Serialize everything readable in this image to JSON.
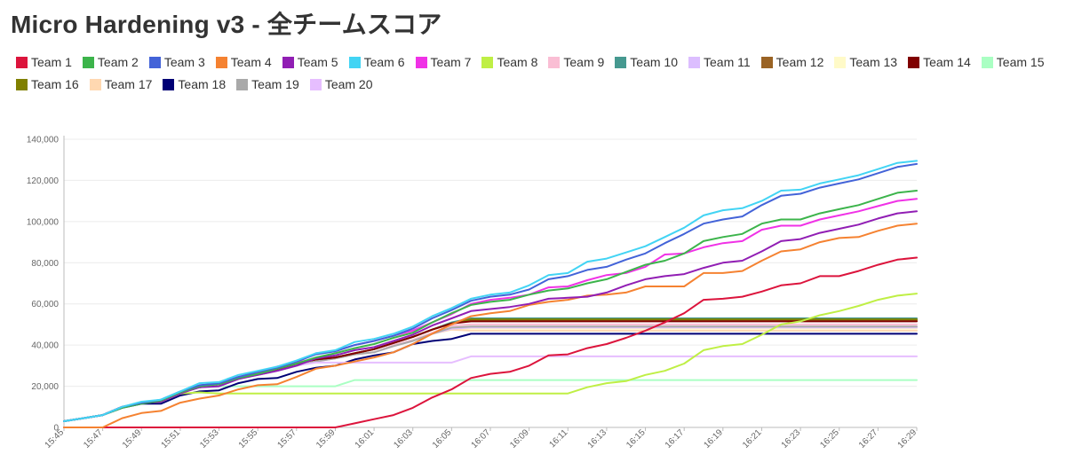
{
  "page": {
    "title": "Micro Hardening v3 - 全チームスコア"
  },
  "chart_data": {
    "type": "line",
    "title": "Micro Hardening v3 - 全チームスコア",
    "xlabel": "",
    "ylabel": "",
    "ylim": [
      0,
      140000
    ],
    "y_ticks": [
      0,
      20000,
      40000,
      60000,
      80000,
      100000,
      120000,
      140000
    ],
    "y_tick_labels": [
      "0",
      "20,000",
      "40,000",
      "60,000",
      "80,000",
      "100,000",
      "120,000",
      "140,000"
    ],
    "x_tick_labels": [
      "15:45",
      "15:47",
      "15:49",
      "15:51",
      "15:53",
      "15:55",
      "15:57",
      "15:59",
      "16:01",
      "16:03",
      "16:05",
      "16:07",
      "16:09",
      "16:11",
      "16:13",
      "16:15",
      "16:17",
      "16:19",
      "16:21",
      "16:23",
      "16:25",
      "16:27",
      "16:29"
    ],
    "grid": "horizontal",
    "legend_position": "top",
    "x": [
      "15:45",
      "15:46",
      "15:47",
      "15:48",
      "15:49",
      "15:50",
      "15:51",
      "15:52",
      "15:53",
      "15:54",
      "15:55",
      "15:56",
      "15:57",
      "15:58",
      "15:59",
      "16:00",
      "16:01",
      "16:02",
      "16:03",
      "16:04",
      "16:05",
      "16:06",
      "16:07",
      "16:08",
      "16:09",
      "16:10",
      "16:11",
      "16:12",
      "16:13",
      "16:14",
      "16:15",
      "16:16",
      "16:17",
      "16:18",
      "16:19",
      "16:20",
      "16:21",
      "16:22",
      "16:23",
      "16:24",
      "16:25",
      "16:26",
      "16:27",
      "16:28",
      "16:29"
    ],
    "series": [
      {
        "name": "Team 1",
        "color": "#dc143c",
        "values": [
          0,
          0,
          0,
          0,
          0,
          0,
          0,
          0,
          0,
          0,
          0,
          0,
          0,
          0,
          0,
          2000,
          4000,
          6000,
          9500,
          14500,
          18500,
          24000,
          26000,
          27000,
          30000,
          35000,
          35500,
          38500,
          40500,
          43500,
          47000,
          51000,
          55500,
          62000,
          62500,
          63500,
          66000,
          69000,
          70000,
          73500,
          73500,
          76000,
          79000,
          81500,
          82500
        ]
      },
      {
        "name": "Team 2",
        "color": "#3cb44b",
        "values": [
          3000,
          4500,
          6000,
          9500,
          11500,
          13000,
          17000,
          20000,
          21000,
          24000,
          26000,
          28500,
          31000,
          34000,
          36000,
          38500,
          40500,
          43500,
          46000,
          51000,
          55500,
          59500,
          61000,
          62000,
          64500,
          66500,
          67500,
          70000,
          72000,
          75500,
          79000,
          81000,
          84500,
          90500,
          92500,
          94000,
          99000,
          101000,
          101000,
          104000,
          106000,
          108000,
          111000,
          114000,
          115000
        ]
      },
      {
        "name": "Team 3",
        "color": "#4363d8",
        "values": [
          3000,
          4500,
          6000,
          10000,
          12000,
          13500,
          17500,
          20500,
          21500,
          24500,
          27000,
          29000,
          32000,
          35500,
          37000,
          40000,
          42000,
          44500,
          48000,
          53000,
          57000,
          61500,
          63500,
          64500,
          67000,
          72000,
          73500,
          76500,
          78000,
          81500,
          84500,
          89500,
          94000,
          99000,
          101000,
          102500,
          108000,
          112500,
          113500,
          116500,
          118500,
          120500,
          123500,
          126500,
          128000
        ]
      },
      {
        "name": "Team 4",
        "color": "#f58231",
        "values": [
          0,
          0,
          0,
          4500,
          7000,
          8000,
          12000,
          14000,
          15500,
          18500,
          20500,
          21000,
          24500,
          28500,
          30000,
          32000,
          34000,
          36500,
          40500,
          45500,
          50000,
          54000,
          55500,
          56500,
          59500,
          61000,
          62000,
          64000,
          64500,
          65500,
          68500,
          68500,
          68500,
          75000,
          75000,
          76000,
          81000,
          85500,
          86500,
          90000,
          92000,
          92500,
          95500,
          98000,
          99000
        ]
      },
      {
        "name": "Team 5",
        "color": "#911eb4",
        "values": [
          3000,
          4500,
          6000,
          10000,
          12000,
          12500,
          16500,
          19500,
          20000,
          23500,
          25500,
          27500,
          30000,
          33500,
          35000,
          37500,
          39000,
          42000,
          45000,
          49500,
          53000,
          56500,
          57500,
          58500,
          60000,
          62500,
          63000,
          63500,
          65500,
          69000,
          72000,
          73500,
          74500,
          77500,
          80000,
          81000,
          85500,
          90500,
          91500,
          94500,
          96500,
          98500,
          101500,
          104000,
          105000
        ]
      },
      {
        "name": "Team 6",
        "color": "#42d4f4",
        "values": [
          3000,
          4500,
          6000,
          10000,
          12500,
          13500,
          17500,
          21500,
          22000,
          25500,
          27500,
          29500,
          32500,
          36000,
          37500,
          41500,
          43000,
          45500,
          49000,
          54000,
          58000,
          62500,
          64500,
          65500,
          69000,
          74000,
          75000,
          80500,
          82000,
          85000,
          88000,
          92500,
          97000,
          103000,
          105500,
          106500,
          110000,
          115000,
          115500,
          118500,
          120500,
          122500,
          125500,
          128500,
          129500
        ]
      },
      {
        "name": "Team 7",
        "color": "#f032e6",
        "values": [
          3000,
          4500,
          6000,
          10000,
          12000,
          13000,
          17000,
          20000,
          21000,
          24500,
          26500,
          29500,
          31500,
          36000,
          37000,
          40000,
          42000,
          44500,
          47000,
          51000,
          55000,
          60000,
          62000,
          63000,
          64500,
          68000,
          68500,
          71500,
          74000,
          75000,
          78000,
          84000,
          84500,
          87500,
          89500,
          90500,
          96000,
          98000,
          98000,
          101000,
          103000,
          105000,
          107500,
          110000,
          111000
        ]
      },
      {
        "name": "Team 8",
        "color": "#bfef45",
        "values": [
          3000,
          4500,
          6000,
          10000,
          12000,
          12500,
          16500,
          17000,
          16500,
          16500,
          16500,
          16500,
          16500,
          16500,
          16500,
          16500,
          16500,
          16500,
          16500,
          16500,
          16500,
          16500,
          16500,
          16500,
          16500,
          16500,
          16500,
          19500,
          21500,
          22500,
          25500,
          27500,
          31000,
          37500,
          39500,
          40500,
          45000,
          50000,
          51500,
          54500,
          56500,
          59000,
          62000,
          64000,
          65000
        ]
      },
      {
        "name": "Team 9",
        "color": "#fabed4",
        "values": [
          3000,
          4500,
          6000,
          10000,
          12000,
          13000,
          17000,
          19500,
          21000,
          24000,
          25500,
          27500,
          30000,
          32000,
          33500,
          35500,
          36500,
          40000,
          42500,
          46000,
          49500,
          50000,
          50000,
          50000,
          50000,
          50000,
          50000,
          50000,
          50000,
          50000,
          50000,
          50000,
          50000,
          50000,
          50000,
          50000,
          50000,
          50000,
          50000,
          50000,
          50000,
          50000,
          50000,
          50000,
          50000
        ]
      },
      {
        "name": "Team 10",
        "color": "#469990",
        "values": [
          3000,
          4500,
          6000,
          10000,
          12000,
          13000,
          17000,
          19500,
          21000,
          24000,
          26000,
          28000,
          31000,
          33000,
          34000,
          36000,
          38000,
          41000,
          44000,
          47500,
          51000,
          53000,
          53000,
          53000,
          53000,
          53000,
          53000,
          53000,
          53000,
          53000,
          53000,
          53000,
          53000,
          53000,
          53000,
          53000,
          53000,
          53000,
          53000,
          53000,
          53000,
          53000,
          53000,
          53000,
          53000
        ]
      },
      {
        "name": "Team 11",
        "color": "#dcbeff",
        "values": [
          3000,
          4500,
          6000,
          10000,
          12000,
          13000,
          17000,
          19500,
          21000,
          24000,
          25500,
          27500,
          30000,
          32000,
          33500,
          35500,
          36500,
          39500,
          42000,
          45500,
          48000,
          48500,
          48500,
          48500,
          48500,
          48500,
          48500,
          48500,
          48500,
          48500,
          48500,
          48500,
          48500,
          48500,
          48500,
          48500,
          48500,
          48500,
          48500,
          48500,
          48500,
          48500,
          48500,
          48500,
          48500
        ]
      },
      {
        "name": "Team 12",
        "color": "#9a6324",
        "values": [
          3000,
          4500,
          6000,
          10000,
          12000,
          13000,
          17000,
          19500,
          21000,
          24000,
          26000,
          28000,
          31000,
          33000,
          34000,
          36000,
          38000,
          41000,
          44000,
          47500,
          50500,
          52000,
          52000,
          52000,
          52000,
          52000,
          52000,
          52000,
          52000,
          52000,
          52000,
          52000,
          52000,
          52000,
          52000,
          52000,
          52000,
          52000,
          52000,
          52000,
          52000,
          52000,
          52000,
          52000,
          52000
        ]
      },
      {
        "name": "Team 13",
        "color": "#fffac8",
        "values": [
          3000,
          4500,
          6000,
          10000,
          12000,
          13000,
          17000,
          19500,
          21000,
          24000,
          25500,
          27500,
          30000,
          32000,
          33500,
          35500,
          36500,
          39500,
          42000,
          45500,
          47500,
          48000,
          48000,
          48000,
          48000,
          48000,
          48000,
          48000,
          48000,
          48000,
          48000,
          48000,
          48000,
          48000,
          48000,
          48000,
          48000,
          48000,
          48000,
          48000,
          48000,
          48000,
          48000,
          48000,
          48000
        ]
      },
      {
        "name": "Team 14",
        "color": "#800000",
        "values": [
          3000,
          4500,
          6000,
          10000,
          12000,
          13000,
          17000,
          19500,
          21000,
          24000,
          26000,
          28000,
          31000,
          33000,
          34000,
          36000,
          38000,
          41000,
          44000,
          47500,
          50500,
          51500,
          51500,
          51500,
          51500,
          51500,
          51500,
          51500,
          51500,
          51500,
          51500,
          51500,
          51500,
          51500,
          51500,
          51500,
          51500,
          51500,
          51500,
          51500,
          51500,
          51500,
          51500,
          51500,
          51500
        ]
      },
      {
        "name": "Team 15",
        "color": "#aaffc3",
        "values": [
          3000,
          4500,
          6000,
          10000,
          12000,
          13000,
          17000,
          19500,
          20000,
          20000,
          20000,
          20000,
          20000,
          20000,
          20000,
          23000,
          23000,
          23000,
          23000,
          23000,
          23000,
          23000,
          23000,
          23000,
          23000,
          23000,
          23000,
          23000,
          23000,
          23000,
          23000,
          23000,
          23000,
          23000,
          23000,
          23000,
          23000,
          23000,
          23000,
          23000,
          23000,
          23000,
          23000,
          23000,
          23000
        ]
      },
      {
        "name": "Team 16",
        "color": "#808000",
        "values": [
          3000,
          4500,
          6000,
          10000,
          12000,
          13000,
          17000,
          19500,
          21000,
          24000,
          26000,
          28000,
          31000,
          33000,
          34000,
          36000,
          38000,
          41000,
          44000,
          47500,
          50500,
          52500,
          52500,
          52500,
          52500,
          52500,
          52500,
          52500,
          52500,
          52500,
          52500,
          52500,
          52500,
          52500,
          52500,
          52500,
          52500,
          52500,
          52500,
          52500,
          52500,
          52500,
          52500,
          52500,
          52500
        ]
      },
      {
        "name": "Team 17",
        "color": "#ffd8b1",
        "values": [
          3000,
          4500,
          6000,
          10000,
          12000,
          13000,
          17000,
          19500,
          21000,
          24000,
          25500,
          27500,
          30000,
          32000,
          33500,
          35500,
          36500,
          39500,
          42000,
          45500,
          47500,
          47000,
          47000,
          47000,
          47000,
          47000,
          47000,
          47000,
          47000,
          47000,
          47000,
          47000,
          47000,
          47000,
          47000,
          47000,
          47000,
          47000,
          47000,
          47000,
          47000,
          47000,
          47000,
          47000,
          47000
        ]
      },
      {
        "name": "Team 18",
        "color": "#000075",
        "values": [
          3000,
          4500,
          6000,
          9500,
          11500,
          11500,
          15500,
          17500,
          18000,
          21500,
          23500,
          24000,
          27000,
          29000,
          30000,
          33000,
          35000,
          36500,
          40500,
          42000,
          43000,
          45500,
          45500,
          45500,
          45500,
          45500,
          45500,
          45500,
          45500,
          45500,
          45500,
          45500,
          45500,
          45500,
          45500,
          45500,
          45500,
          45500,
          45500,
          45500,
          45500,
          45500,
          45500,
          45500,
          45500
        ]
      },
      {
        "name": "Team 19",
        "color": "#a9a9a9",
        "values": [
          3000,
          4500,
          6000,
          10000,
          12000,
          13000,
          17000,
          19500,
          21000,
          24000,
          25500,
          27500,
          30000,
          32000,
          33500,
          35500,
          36500,
          39500,
          42000,
          45500,
          48500,
          49000,
          49000,
          49000,
          49000,
          49000,
          49000,
          49000,
          49000,
          49000,
          49000,
          49000,
          49000,
          49000,
          49000,
          49000,
          49000,
          49000,
          49000,
          49000,
          49000,
          49000,
          49000,
          49000,
          49000
        ]
      },
      {
        "name": "Team 20",
        "color": "#e6beff",
        "values": [
          3000,
          4500,
          6000,
          10000,
          12000,
          13000,
          17000,
          19500,
          21000,
          24000,
          25500,
          27500,
          30000,
          31500,
          31500,
          31500,
          31500,
          31500,
          31500,
          31500,
          31500,
          34500,
          34500,
          34500,
          34500,
          34500,
          34500,
          34500,
          34500,
          34500,
          34500,
          34500,
          34500,
          34500,
          34500,
          34500,
          34500,
          34500,
          34500,
          34500,
          34500,
          34500,
          34500,
          34500,
          34500
        ]
      }
    ]
  }
}
